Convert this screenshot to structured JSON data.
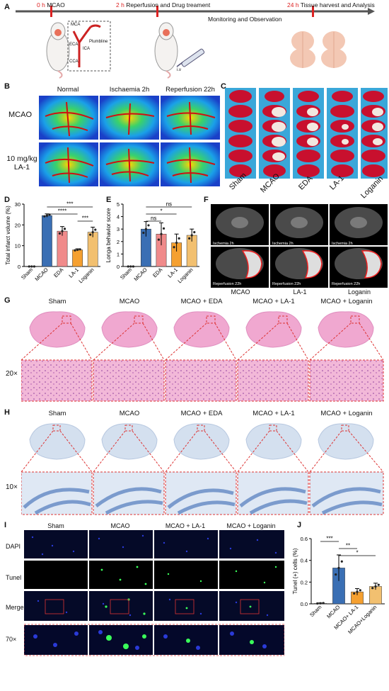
{
  "panels": {
    "A": "A",
    "B": "B",
    "C": "C",
    "D": "D",
    "E": "E",
    "F": "F",
    "G": "G",
    "H": "H",
    "I": "I",
    "J": "J"
  },
  "timeline": {
    "t0_time": "0 h",
    "t0_label": "MCAO",
    "t2_time": "2 h",
    "t2_label": "Reperfusion and Drug treament",
    "t24_time": "24 h",
    "t24_label": "Tissue harvest and Analysis",
    "monitoring": "Monitoring and Observation",
    "anat": [
      "MCA",
      "ECA",
      "ICA",
      "CCA",
      "Plumbline"
    ],
    "iv": "i.v"
  },
  "panelB": {
    "cols": [
      "Normal",
      "Ischaemia 2h",
      "Reperfusion 22h"
    ],
    "rows": [
      "MCAO",
      "10 mg/kg LA-1"
    ]
  },
  "panelC": {
    "labels": [
      "Sham",
      "MCAO",
      "EDA",
      "LA-1",
      "Loganin"
    ]
  },
  "panelF": {
    "cols": [
      "MCAO",
      "LA-1",
      "Loganin"
    ],
    "row1": "Ischemia 2h",
    "row2": "Reperfusion 22h"
  },
  "panelG": {
    "cols": [
      "Sham",
      "MCAO",
      "MCAO + EDA",
      "MCAO + LA-1",
      "MCAO + Loganin"
    ],
    "mag": "20×"
  },
  "panelH": {
    "cols": [
      "Sham",
      "MCAO",
      "MCAO + EDA",
      "MCAO + LA-1",
      "MCAO + Loganin"
    ],
    "mag": "10×"
  },
  "panelI": {
    "cols": [
      "Sham",
      "MCAO",
      "MCAO + LA-1",
      "MCAO + Loganin"
    ],
    "rows": [
      "DAPI",
      "Tunel",
      "Merge",
      "70×"
    ]
  },
  "chart_data": [
    {
      "panel": "D",
      "type": "bar",
      "ylabel": "Total infarct volume (%)",
      "ylim": [
        0,
        30
      ],
      "yticks": [
        0,
        10,
        20,
        30
      ],
      "categories": [
        "Sham",
        "MCAO",
        "EDA",
        "LA-1",
        "Loganin"
      ],
      "values": [
        0,
        24.5,
        17,
        8,
        16.5
      ],
      "errors": [
        0,
        0.8,
        2.2,
        0.5,
        2.4
      ],
      "colors": [
        "#c8c8c8",
        "#3a6fb4",
        "#f08a8a",
        "#f5a030",
        "#f2c070"
      ],
      "significance": [
        {
          "from": 1,
          "to": 4,
          "label": "***"
        },
        {
          "from": 1,
          "to": 3,
          "label": "****"
        },
        {
          "from": 3,
          "to": 4,
          "label": "***"
        }
      ]
    },
    {
      "panel": "E",
      "type": "bar",
      "ylabel": "Longa behavior score",
      "ylim": [
        0,
        5
      ],
      "yticks": [
        0,
        1,
        2,
        3,
        4,
        5
      ],
      "categories": [
        "Sham",
        "MCAO",
        "EDA",
        "LA-1",
        "Loganin"
      ],
      "values": [
        0,
        3.0,
        2.6,
        1.9,
        2.5
      ],
      "errors": [
        0,
        0.6,
        0.9,
        0.7,
        0.5
      ],
      "colors": [
        "#c8c8c8",
        "#3a6fb4",
        "#f08a8a",
        "#f5a030",
        "#f2c070"
      ],
      "significance": [
        {
          "from": 1,
          "to": 4,
          "label": "ns"
        },
        {
          "from": 1,
          "to": 3,
          "label": "*"
        },
        {
          "from": 1,
          "to": 2,
          "label": "ns"
        }
      ]
    },
    {
      "panel": "J",
      "type": "bar",
      "ylabel": "Tunel (+) cells (%)",
      "ylim": [
        0,
        0.6
      ],
      "yticks": [
        0,
        0.2,
        0.4,
        0.6
      ],
      "yticklabels": [
        "0.0",
        "0.2",
        "0.4",
        "0.6"
      ],
      "categories": [
        "Sham",
        "MCAO",
        "MCAO+ LA-1",
        "MCAO+Loganin"
      ],
      "values": [
        0.005,
        0.33,
        0.11,
        0.16
      ],
      "errors": [
        0.003,
        0.12,
        0.03,
        0.03
      ],
      "colors": [
        "#c8c8c8",
        "#3a6fb4",
        "#f5a030",
        "#f2c070"
      ],
      "significance": [
        {
          "from": 0,
          "to": 1,
          "label": "***"
        },
        {
          "from": 1,
          "to": 2,
          "label": "**"
        },
        {
          "from": 1,
          "to": 3,
          "label": "*"
        }
      ]
    }
  ]
}
